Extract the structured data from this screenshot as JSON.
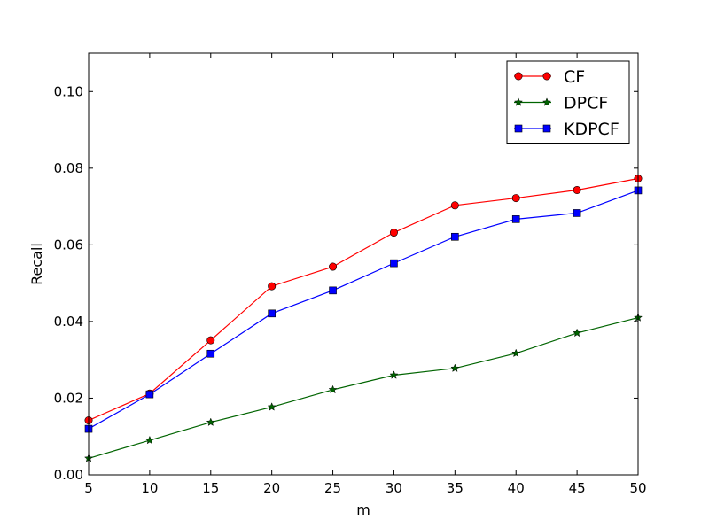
{
  "chart_data": {
    "type": "line",
    "xlabel": "m",
    "ylabel": "Recall",
    "x": [
      5,
      10,
      15,
      20,
      25,
      30,
      35,
      40,
      45,
      50
    ],
    "xlim": [
      5,
      50
    ],
    "ylim": [
      0.0,
      0.11
    ],
    "xticks": [
      "5",
      "10",
      "15",
      "20",
      "25",
      "30",
      "35",
      "40",
      "45",
      "50"
    ],
    "yticks": [
      "0.00",
      "0.02",
      "0.04",
      "0.06",
      "0.08",
      "0.10"
    ],
    "grid": false,
    "legend_position": "top-right",
    "series": [
      {
        "name": "CF",
        "color": "#ff0000",
        "marker": "circle",
        "values": [
          0.0142,
          0.0212,
          0.0351,
          0.0492,
          0.0543,
          0.0632,
          0.0703,
          0.0722,
          0.0743,
          0.0773
        ]
      },
      {
        "name": "DPCF",
        "color": "#006400",
        "marker": "star",
        "values": [
          0.0043,
          0.009,
          0.0137,
          0.0177,
          0.0222,
          0.026,
          0.0278,
          0.0317,
          0.037,
          0.041
        ]
      },
      {
        "name": "KDPCF",
        "color": "#0000ff",
        "marker": "square",
        "values": [
          0.012,
          0.021,
          0.0316,
          0.0421,
          0.0481,
          0.0552,
          0.0621,
          0.0667,
          0.0683,
          0.0742
        ]
      }
    ]
  }
}
